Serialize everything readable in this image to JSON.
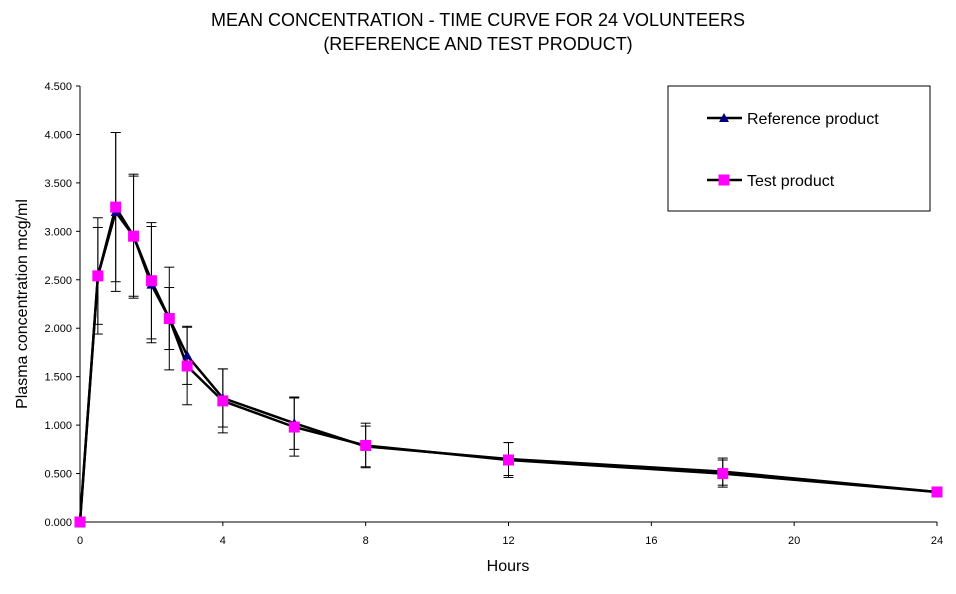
{
  "chart_data": {
    "type": "line",
    "title_line1": "MEAN CONCENTRATION - TIME CURVE FOR 24 VOLUNTEERS",
    "title_line2": "(REFERENCE AND TEST PRODUCT)",
    "xlabel": "Hours",
    "ylabel": "Plasma concentration mcg/ml",
    "xlim": [
      0,
      24
    ],
    "ylim": [
      0,
      4.5
    ],
    "x_ticks": [
      "0",
      "4",
      "8",
      "12",
      "16",
      "20",
      "24"
    ],
    "y_ticks": [
      "0.000",
      "0.500",
      "1.000",
      "1.500",
      "2.000",
      "2.500",
      "3.000",
      "3.500",
      "4.000",
      "4.500"
    ],
    "grid": false,
    "legend_position": "top-right",
    "x": [
      0,
      0.5,
      1,
      1.5,
      2,
      2.5,
      3,
      4,
      6,
      8,
      12,
      18,
      24
    ],
    "series": [
      {
        "name": "Reference product",
        "marker": "triangle",
        "color": "#000080",
        "values": [
          0,
          2.54,
          3.2,
          2.95,
          2.45,
          2.1,
          1.72,
          1.28,
          1.02,
          0.78,
          0.65,
          0.52,
          0.31
        ],
        "error": [
          0,
          0.5,
          0.82,
          0.64,
          0.6,
          0.32,
          0.3,
          0.3,
          0.27,
          0.21,
          0.17,
          0.14,
          0.05
        ]
      },
      {
        "name": "Test product",
        "marker": "square",
        "color": "#FF00FF",
        "values": [
          0,
          2.54,
          3.25,
          2.95,
          2.49,
          2.1,
          1.61,
          1.25,
          0.98,
          0.79,
          0.64,
          0.5,
          0.31
        ],
        "error": [
          0,
          0.6,
          0.77,
          0.62,
          0.6,
          0.53,
          0.4,
          0.33,
          0.3,
          0.23,
          0.18,
          0.14,
          0.05
        ]
      }
    ]
  }
}
